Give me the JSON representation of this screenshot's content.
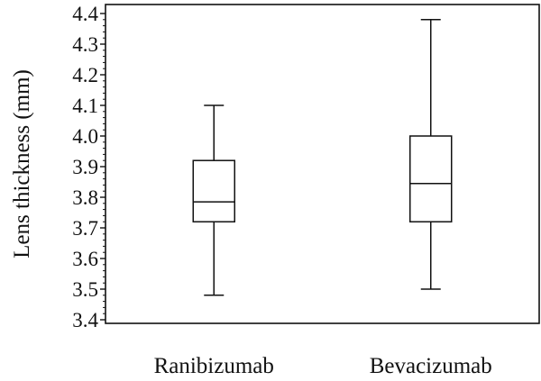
{
  "chart_data": {
    "type": "box",
    "title": "",
    "xlabel": "",
    "ylabel": "Lens thickness (mm)",
    "ylim": [
      3.37,
      4.42
    ],
    "y_ticks": [
      3.4,
      3.5,
      3.6,
      3.7,
      3.8,
      3.9,
      4.0,
      4.1,
      4.2,
      4.3,
      4.4
    ],
    "y_tick_labels": [
      "3.4",
      "3.5",
      "3.6",
      "3.7",
      "3.8",
      "3.9",
      "4.0",
      "4.1",
      "4.2",
      "4.3",
      "4.4"
    ],
    "grid": false,
    "categories": [
      "Ranibizumab",
      "Bevacizumab"
    ],
    "boxes": [
      {
        "category": "Ranibizumab",
        "min": 3.48,
        "q1": 3.72,
        "median": 3.785,
        "q3": 3.92,
        "max": 4.1
      },
      {
        "category": "Bevacizumab",
        "min": 3.5,
        "q1": 3.72,
        "median": 3.845,
        "q3": 4.0,
        "max": 4.38
      }
    ]
  }
}
